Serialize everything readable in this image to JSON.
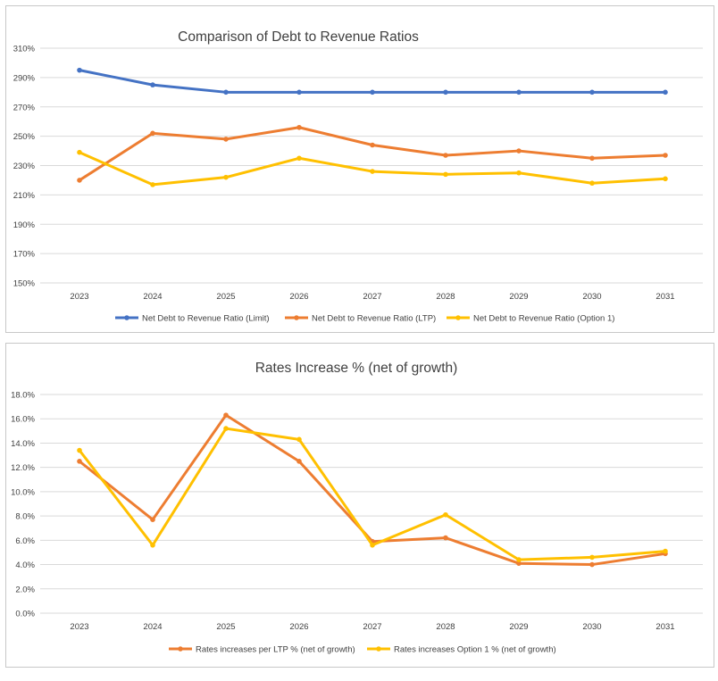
{
  "colors": {
    "limit": "#4472C4",
    "ltp": "#ED7D31",
    "option1": "#FFC000",
    "grid": "#d9d9d9",
    "text": "#404040"
  },
  "chart_data": [
    {
      "type": "line",
      "title": "Comparison of Debt to Revenue Ratios",
      "categories": [
        "2023",
        "2024",
        "2025",
        "2026",
        "2027",
        "2028",
        "2029",
        "2030",
        "2031"
      ],
      "y_ticks": [
        "150%",
        "170%",
        "190%",
        "210%",
        "230%",
        "250%",
        "270%",
        "290%",
        "310%"
      ],
      "ylim": [
        150,
        310
      ],
      "y_unit": "%",
      "grid": true,
      "legend": "bottom",
      "series": [
        {
          "name": "Net Debt to Revenue Ratio (Limit)",
          "color": "#4472C4",
          "values": [
            295,
            285,
            280,
            280,
            280,
            280,
            280,
            280,
            280
          ]
        },
        {
          "name": "Net Debt to Revenue Ratio (LTP)",
          "color": "#ED7D31",
          "values": [
            220,
            252,
            248,
            256,
            244,
            237,
            240,
            235,
            237
          ]
        },
        {
          "name": "Net Debt to Revenue Ratio (Option 1)",
          "color": "#FFC000",
          "values": [
            239,
            217,
            222,
            235,
            226,
            224,
            225,
            218,
            221
          ]
        }
      ]
    },
    {
      "type": "line",
      "title": "Rates Increase % (net of growth)",
      "categories": [
        "2023",
        "2024",
        "2025",
        "2026",
        "2027",
        "2028",
        "2029",
        "2030",
        "2031"
      ],
      "y_ticks": [
        "0.0%",
        "2.0%",
        "4.0%",
        "6.0%",
        "8.0%",
        "10.0%",
        "12.0%",
        "14.0%",
        "16.0%",
        "18.0%"
      ],
      "ylim": [
        0,
        18
      ],
      "y_unit": "%",
      "grid": true,
      "legend": "bottom",
      "series": [
        {
          "name": "Rates increases per LTP % (net of growth)",
          "color": "#ED7D31",
          "values": [
            12.5,
            7.7,
            16.3,
            12.5,
            5.9,
            6.2,
            4.1,
            4.0,
            4.9
          ]
        },
        {
          "name": "Rates increases Option 1 % (net of growth)",
          "color": "#FFC000",
          "values": [
            13.4,
            5.6,
            15.2,
            14.3,
            5.6,
            8.1,
            4.4,
            4.6,
            5.1
          ]
        }
      ]
    }
  ]
}
